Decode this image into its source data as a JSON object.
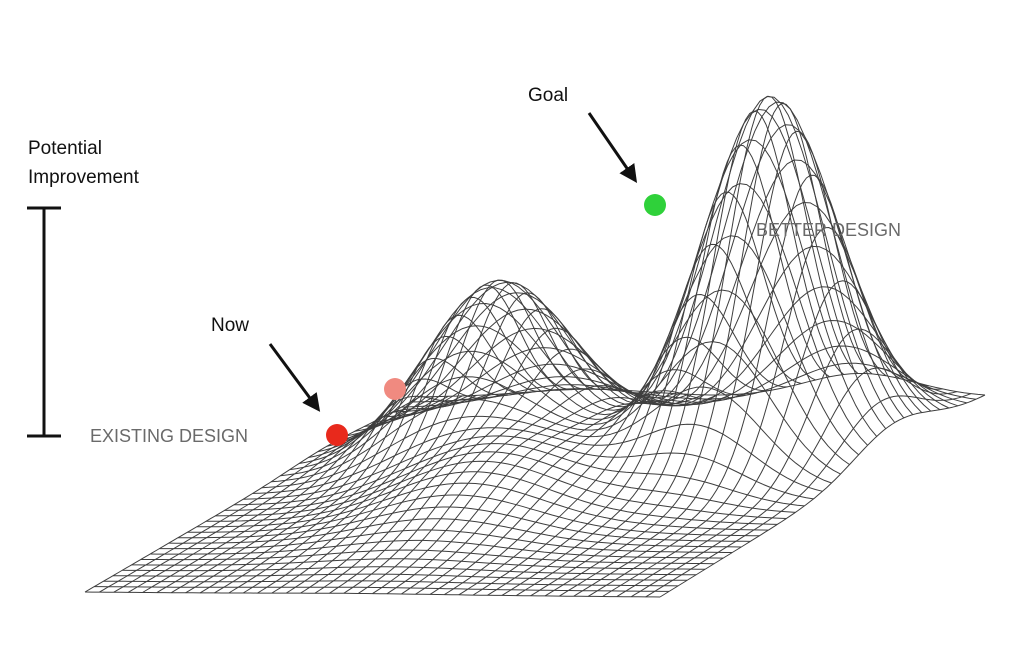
{
  "labels": {
    "potential_line1": "Potential",
    "potential_line2": "Improvement",
    "now": "Now",
    "goal": "Goal",
    "existing_design": "EXISTING DESIGN",
    "better_design": "BETTER DESIGN"
  },
  "colors": {
    "now_marker": "#e8291c",
    "faded_peak_marker": "#f08a80",
    "goal_marker": "#2fd13a",
    "mesh": "#3e3e3e",
    "text_dark": "#111111",
    "text_grey": "#6a6a6a"
  },
  "markers": [
    {
      "name": "now-marker",
      "meaning": "Now",
      "color_key": "now_marker"
    },
    {
      "name": "local-peak-marker",
      "meaning": "local peak",
      "color_key": "faded_peak_marker"
    },
    {
      "name": "goal-marker",
      "meaning": "Goal",
      "color_key": "goal_marker"
    }
  ]
}
